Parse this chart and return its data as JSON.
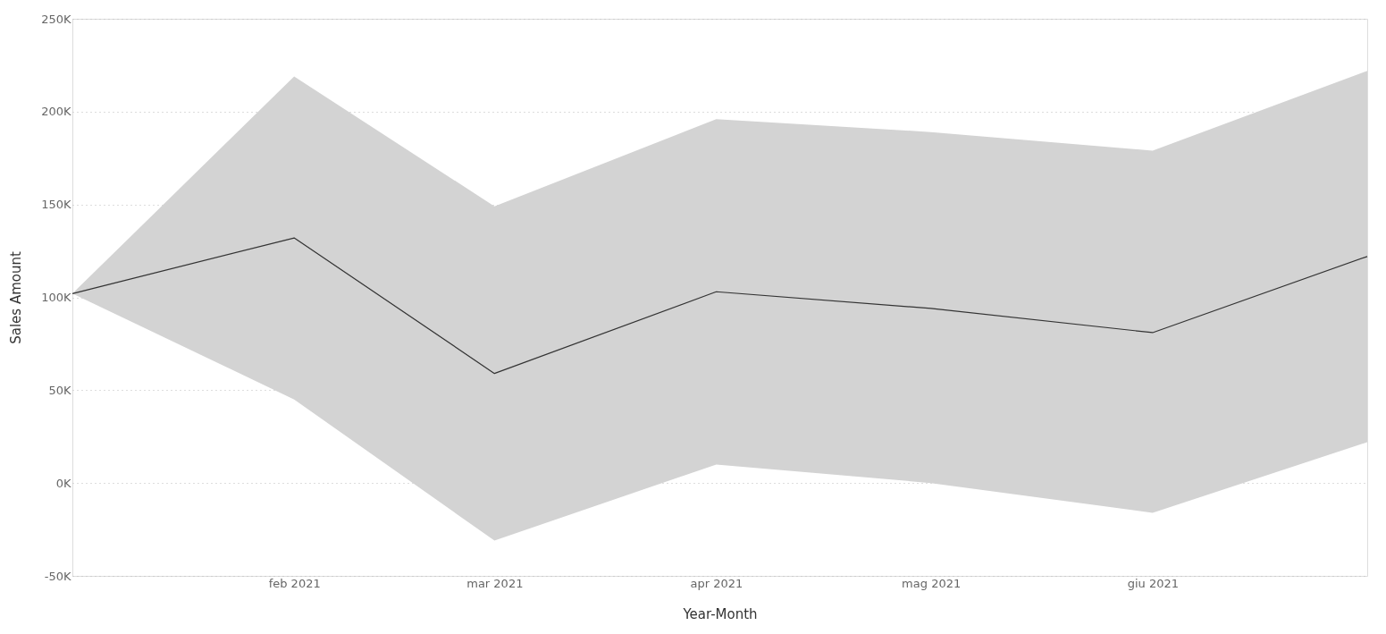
{
  "chart_data": {
    "type": "line",
    "xlabel": "Year-Month",
    "ylabel": "Sales Amount",
    "x": [
      "2021-01",
      "2021-02",
      "2021-03",
      "2021-04",
      "2021-05",
      "2021-06",
      "2021-07"
    ],
    "series": [
      {
        "color": "#333333",
        "values": [
          102000,
          132000,
          59000,
          103000,
          94000,
          81000,
          122000
        ],
        "lower": [
          102000,
          45000,
          -31000,
          10000,
          0,
          -16000,
          22000
        ],
        "upper": [
          102000,
          219000,
          149000,
          196000,
          189000,
          179000,
          222000
        ]
      }
    ],
    "xlim": [
      "2021-01",
      "2021-07"
    ],
    "xticks": [
      {
        "value": "2021-02",
        "label": "feb 2021"
      },
      {
        "value": "2021-03",
        "label": "mar 2021"
      },
      {
        "value": "2021-04",
        "label": "apr 2021"
      },
      {
        "value": "2021-05",
        "label": "mag 2021"
      },
      {
        "value": "2021-06",
        "label": "giu 2021"
      }
    ],
    "ylim": [
      -50000,
      250000
    ],
    "yticks": [
      {
        "value": -50000,
        "label": "-50K"
      },
      {
        "value": 0,
        "label": "0K"
      },
      {
        "value": 50000,
        "label": "50K"
      },
      {
        "value": 100000,
        "label": "100K"
      },
      {
        "value": 150000,
        "label": "150K"
      },
      {
        "value": 200000,
        "label": "200K"
      },
      {
        "value": 250000,
        "label": "250K"
      }
    ],
    "grid": "y",
    "marker": "none",
    "line_style": "solid"
  }
}
